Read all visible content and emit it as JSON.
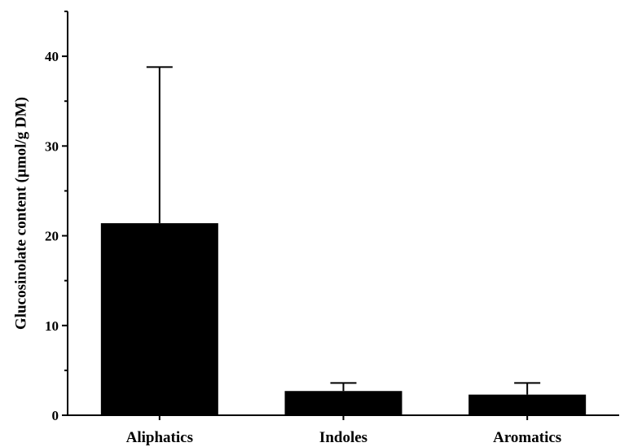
{
  "chart_data": {
    "type": "bar",
    "categories": [
      "Aliphatics",
      "Indoles",
      "Aromatics"
    ],
    "values": [
      21.4,
      2.7,
      2.3
    ],
    "error_upper": [
      38.8,
      3.6,
      3.6
    ],
    "ylabel": "Glucosinolate content (µmol/g DM)",
    "xlabel": "",
    "ylim": [
      0,
      45
    ],
    "yticks": [
      0,
      10,
      20,
      30,
      40
    ],
    "grid": false,
    "bar_color": "#000000"
  }
}
